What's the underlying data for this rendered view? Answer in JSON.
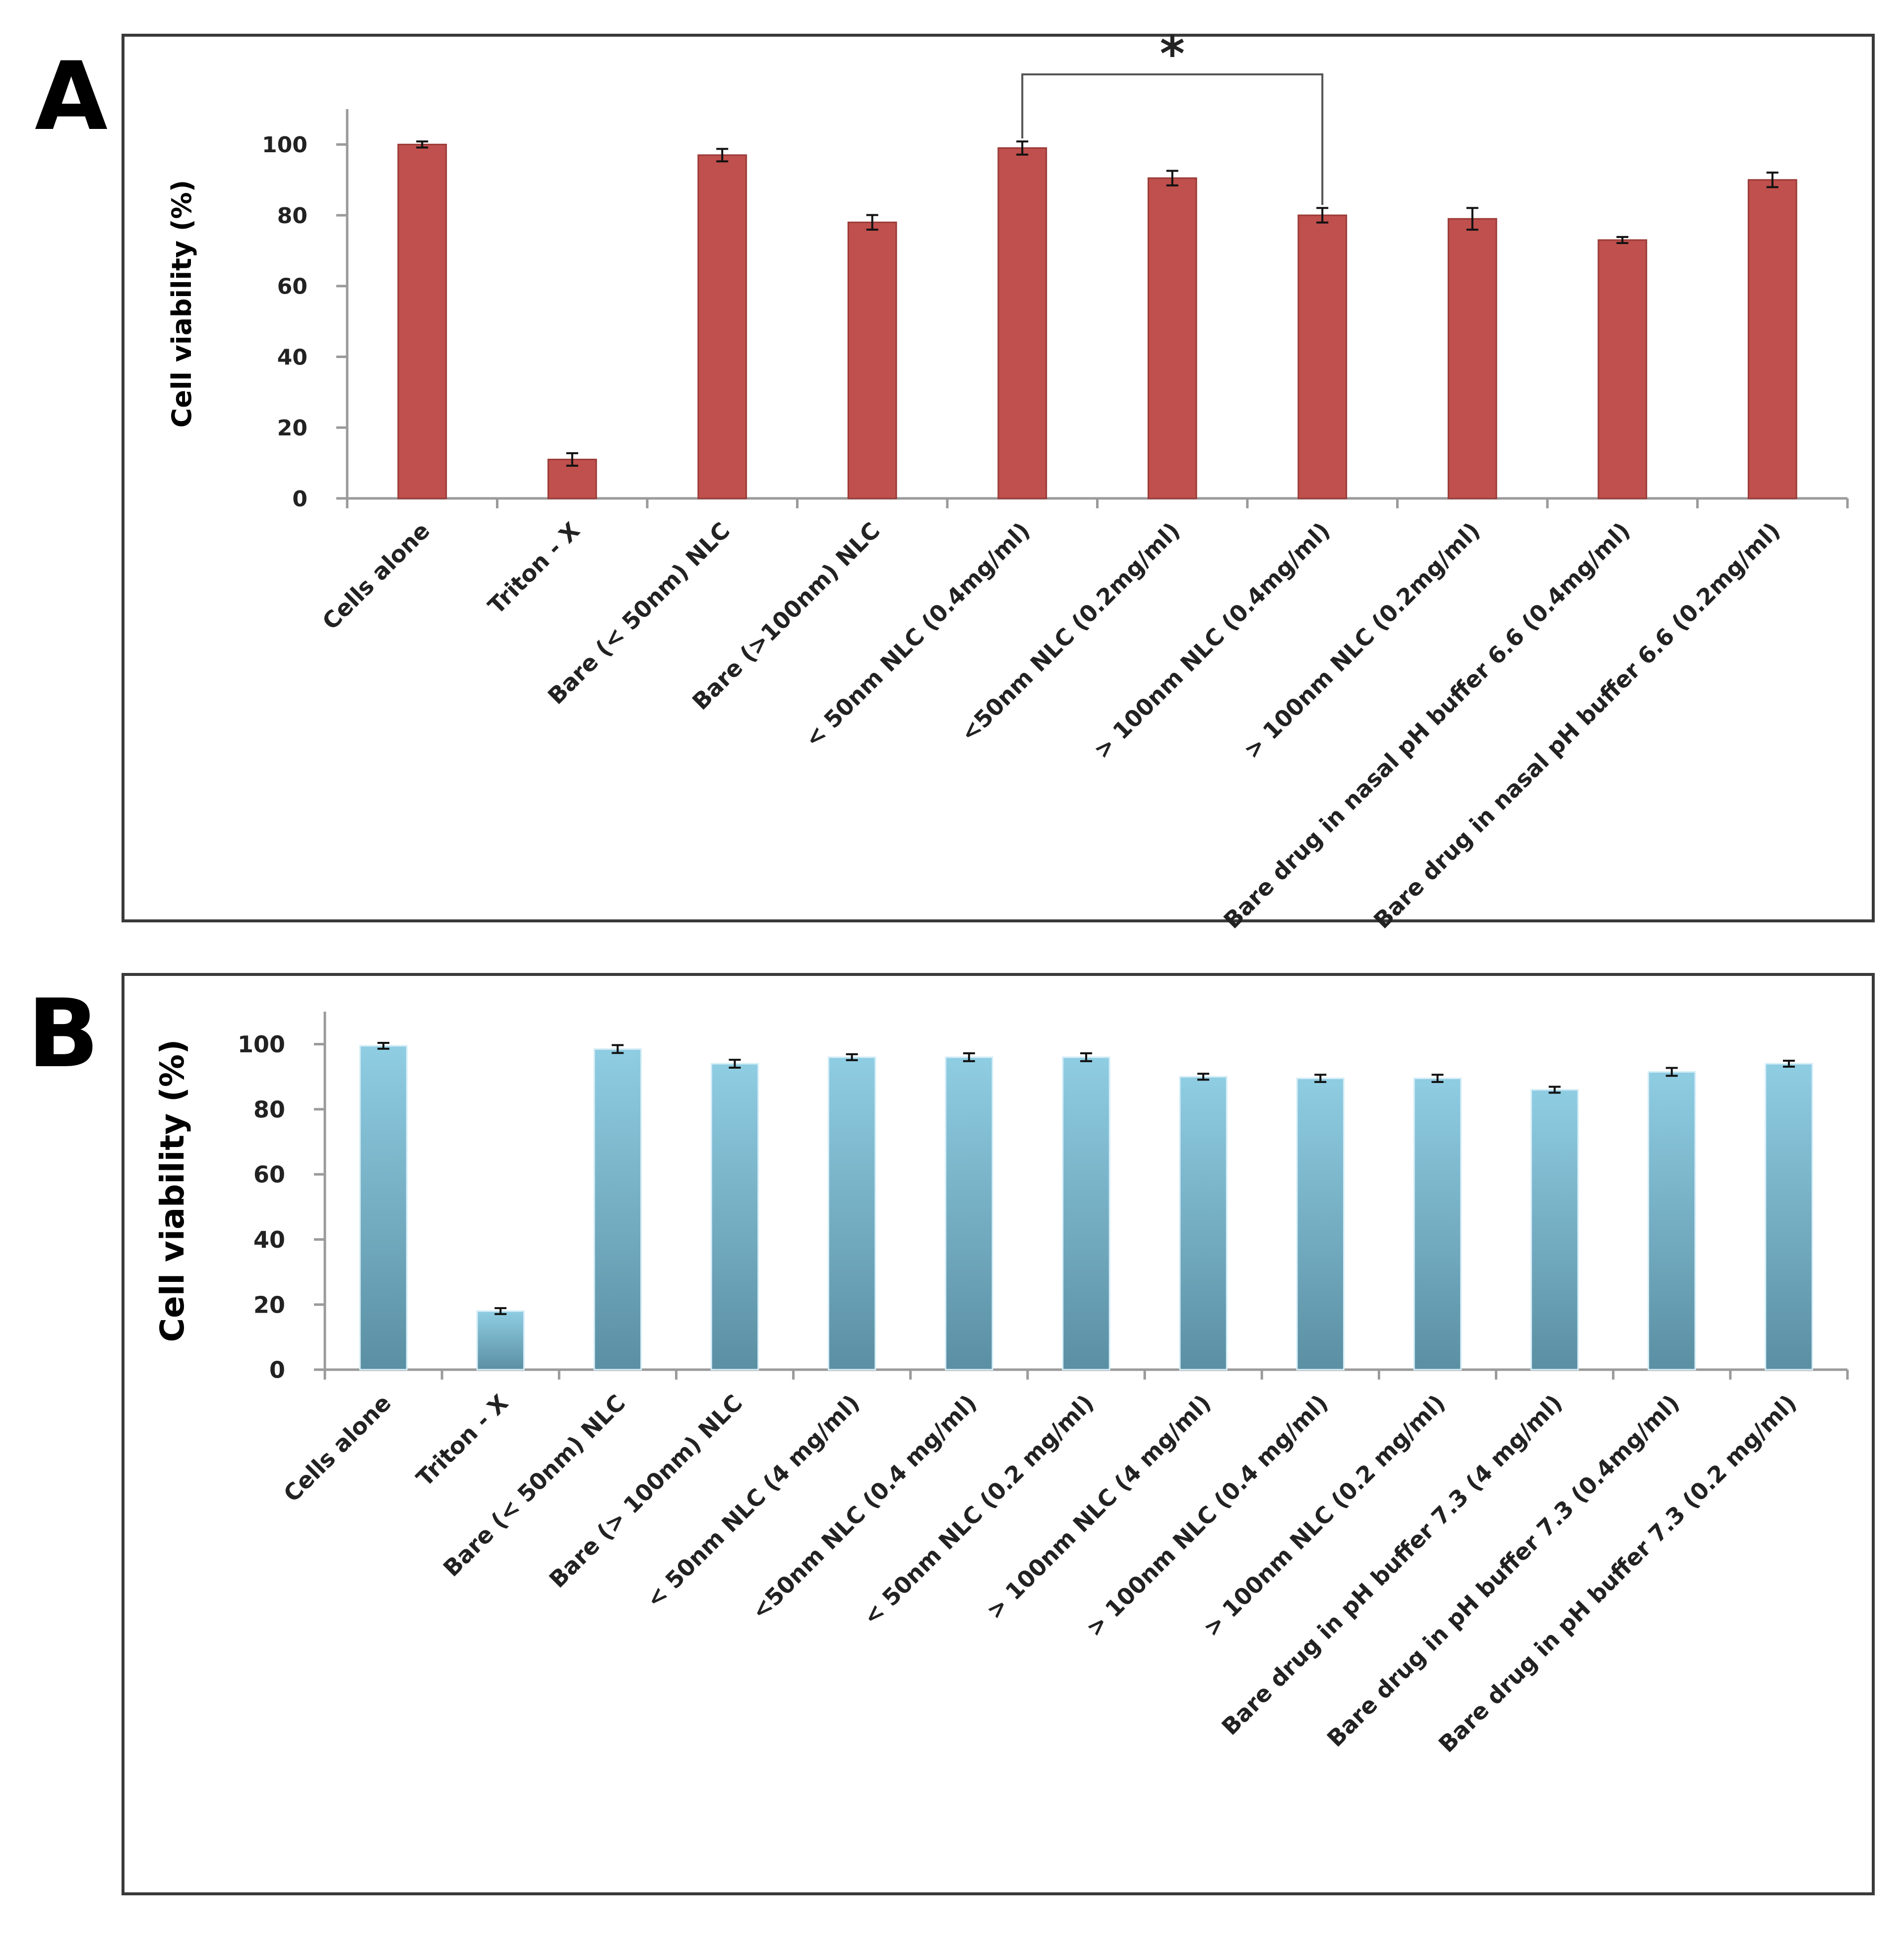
{
  "colors": {
    "bar_a": "#c0504d",
    "bar_a_edge": "#9b3b38",
    "bar_b_top": "#8fcde3",
    "bar_b_bottom": "#5b8fa3",
    "axis": "#9a9a9a",
    "frame": "#3a3a3a",
    "text": "#222222"
  },
  "chart_data": [
    {
      "panel": "A",
      "type": "bar",
      "title": "",
      "xlabel": "",
      "ylabel": "Cell viability (%)",
      "ylim": [
        0,
        110
      ],
      "yticks": [
        0,
        20,
        40,
        60,
        80,
        100
      ],
      "grid": false,
      "categories": [
        "Cells alone",
        "Triton - X",
        "Bare (< 50nm) NLC",
        "Bare (>100nm) NLC",
        "< 50nm NLC (0.4mg/ml)",
        "<50nm NLC (0.2mg/ml)",
        "> 100nm NLC (0.4mg/ml)",
        "> 100nm NLC (0.2mg/ml)",
        "Bare drug in nasal pH buffer 6.6 (0.4mg/ml)",
        "Bare drug in nasal pH buffer 6.6 (0.2mg/ml)"
      ],
      "values": [
        100,
        11,
        97,
        78,
        99,
        90.5,
        80,
        79,
        73,
        90
      ],
      "errors": [
        0.3,
        1.2,
        1.2,
        1.5,
        1.3,
        1.5,
        1.5,
        2.5,
        0.3,
        1.5
      ],
      "annotations": [
        {
          "text": "*",
          "from_category": 4,
          "to_category": 6
        }
      ]
    },
    {
      "panel": "B",
      "type": "bar",
      "title": "",
      "xlabel": "",
      "ylabel": "Cell viability (%)",
      "ylim": [
        0,
        110
      ],
      "yticks": [
        0,
        20,
        40,
        60,
        80,
        100
      ],
      "grid": false,
      "categories": [
        "Cells alone",
        "Triton - X",
        "Bare (< 50nm) NLC",
        "Bare (> 100nm) NLC",
        "< 50nm NLC (4 mg/ml)",
        "<50nm NLC (0.4 mg/ml)",
        "< 50nm NLC (0.2 mg/ml)",
        "> 100nm NLC (4 mg/ml)",
        "> 100nm NLC (0.4 mg/ml)",
        "> 100nm NLC (0.2 mg/ml)",
        "Bare drug in pH buffer 7.3 (4 mg/ml)",
        "Bare drug in pH buffer 7.3 (0.4mg/ml)",
        "Bare drug in pH buffer 7.3 (0.2 mg/ml)"
      ],
      "values": [
        99.5,
        18,
        98.5,
        94,
        96,
        96,
        96,
        90,
        89.5,
        89.5,
        86,
        91.5,
        94
      ],
      "errors": [
        0.3,
        0.3,
        0.6,
        0.6,
        0.3,
        0.6,
        0.6,
        0.3,
        0.5,
        0.5,
        0.3,
        0.6,
        0.3
      ]
    }
  ],
  "panels": {
    "a_letter": "A",
    "b_letter": "B"
  }
}
